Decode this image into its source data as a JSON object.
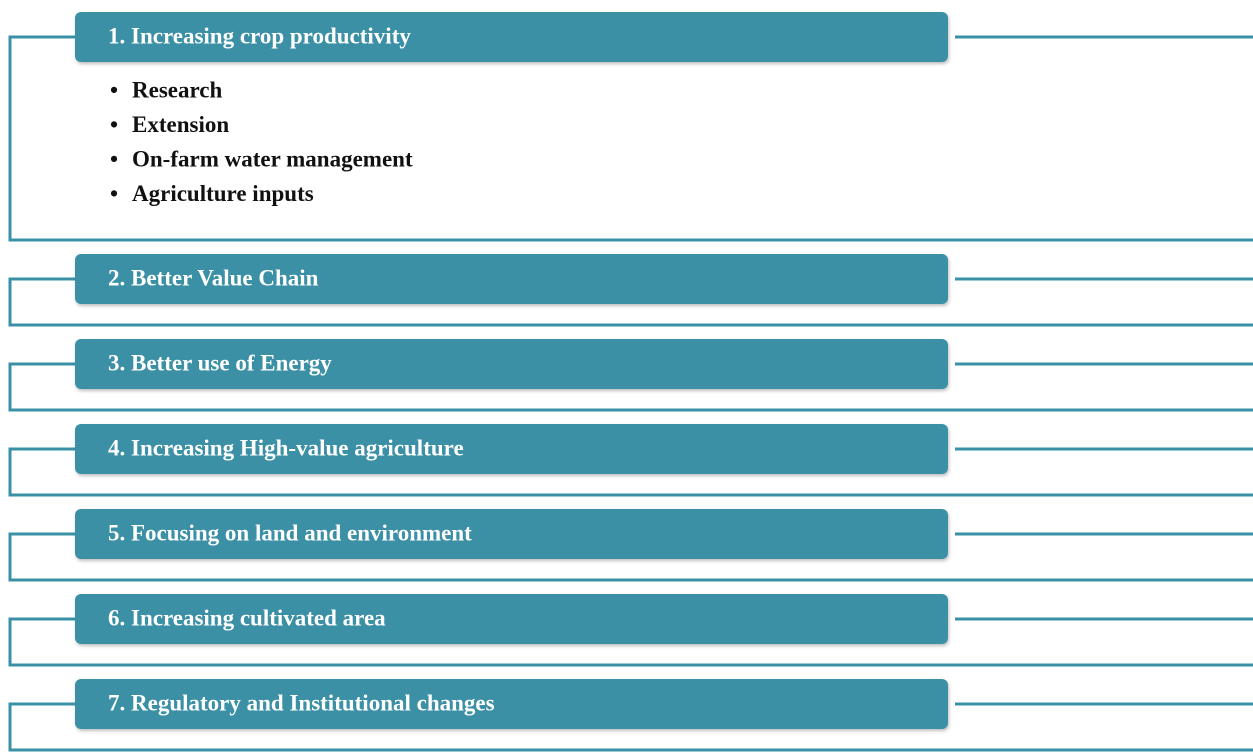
{
  "items": [
    {
      "title": "1. Increasing crop productivity",
      "bullets": [
        "Research",
        "Extension",
        "On-farm water management",
        "Agriculture inputs"
      ]
    },
    {
      "title": "2. Better Value Chain",
      "bullets": []
    },
    {
      "title": "3. Better use of  Energy",
      "bullets": []
    },
    {
      "title": "4. Increasing High-value agriculture",
      "bullets": []
    },
    {
      "title": "5. Focusing on land and environment",
      "bullets": []
    },
    {
      "title": "6. Increasing cultivated area",
      "bullets": []
    },
    {
      "title": "7. Regulatory and Institutional changes",
      "bullets": []
    }
  ]
}
